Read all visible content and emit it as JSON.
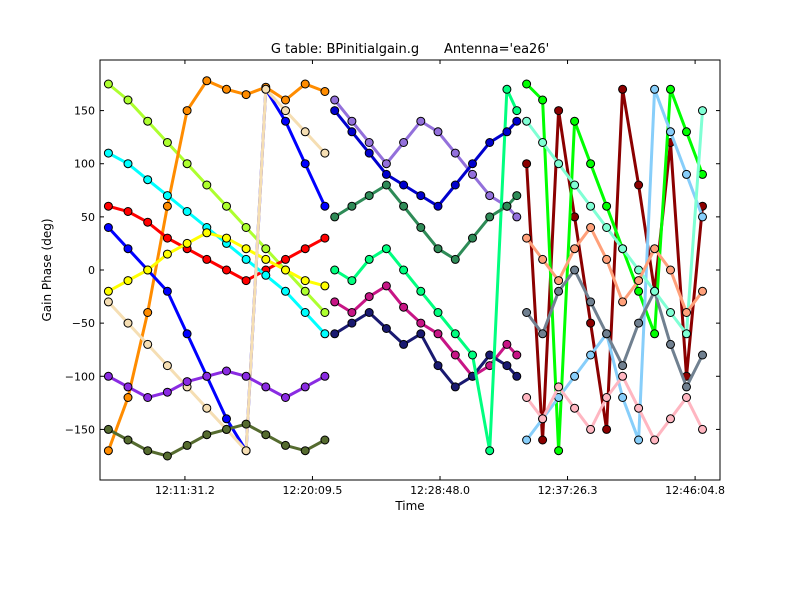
{
  "chart_data": {
    "type": "scatter",
    "title": "G table: BPinitialgain.g      Antenna='ea26'",
    "xlabel": "Time",
    "ylabel": "Gain Phase (deg)",
    "xlim": [
      "12:05:46",
      "12:47:46"
    ],
    "ylim": [
      -197.6,
      197.6
    ],
    "xticks": [
      "12:11:31.2",
      "12:20:09.5",
      "12:28:48.0",
      "12:37:26.3",
      "12:46:04.8"
    ],
    "yticks": [
      -150,
      -100,
      -50,
      0,
      50,
      100,
      150
    ],
    "grid": false,
    "marker": "circle",
    "x": [
      "12:06:20",
      "12:07:40",
      "12:09:00",
      "12:10:20",
      "12:11:40",
      "12:13:00",
      "12:14:20",
      "12:15:40",
      "12:17:00",
      "12:18:20",
      "12:19:40",
      "12:21:00",
      "12:21:40",
      "12:22:50",
      "12:24:00",
      "12:25:10",
      "12:26:20",
      "12:27:30",
      "12:28:40",
      "12:29:50",
      "12:31:00",
      "12:32:10",
      "12:33:20",
      "12:34:00",
      "12:34:40",
      "12:35:45",
      "12:36:50",
      "12:37:55",
      "12:39:00",
      "12:40:05",
      "12:41:10",
      "12:42:15",
      "12:43:20",
      "12:44:25",
      "12:45:30",
      "12:46:35"
    ],
    "series": [
      {
        "color": "#ADFF2F",
        "values": [
          175,
          160,
          140,
          120,
          100,
          80,
          60,
          40,
          20,
          0,
          -20,
          -40,
          null,
          null,
          null,
          null,
          null,
          null,
          null,
          null,
          null,
          null,
          null,
          null,
          null,
          null,
          null,
          null,
          null,
          null,
          null,
          null,
          null,
          null,
          null,
          null
        ]
      },
      {
        "color": "#FF8C00",
        "values": [
          -170,
          -120,
          -40,
          60,
          150,
          178,
          170,
          165,
          172,
          160,
          175,
          168,
          null,
          null,
          null,
          null,
          null,
          null,
          null,
          null,
          null,
          null,
          null,
          null,
          null,
          null,
          null,
          null,
          null,
          null,
          null,
          null,
          null,
          null,
          null,
          null
        ]
      },
      {
        "color": "#0000FF",
        "values": [
          40,
          20,
          0,
          -20,
          -60,
          -100,
          -140,
          -170,
          170,
          140,
          100,
          60,
          null,
          null,
          null,
          null,
          null,
          null,
          null,
          null,
          null,
          null,
          null,
          null,
          null,
          null,
          null,
          null,
          null,
          null,
          null,
          null,
          null,
          null,
          null,
          null
        ]
      },
      {
        "color": "#FF0000",
        "values": [
          60,
          55,
          45,
          30,
          20,
          10,
          0,
          -10,
          0,
          10,
          20,
          30,
          null,
          null,
          null,
          null,
          null,
          null,
          null,
          null,
          null,
          null,
          null,
          null,
          null,
          null,
          null,
          null,
          null,
          null,
          null,
          null,
          null,
          null,
          null,
          null
        ]
      },
      {
        "color": "#00FFFF",
        "values": [
          110,
          100,
          85,
          70,
          55,
          40,
          25,
          10,
          -5,
          -20,
          -40,
          -60,
          null,
          null,
          null,
          null,
          null,
          null,
          null,
          null,
          null,
          null,
          null,
          null,
          null,
          null,
          null,
          null,
          null,
          null,
          null,
          null,
          null,
          null,
          null,
          null
        ]
      },
      {
        "color": "#FFFF00",
        "values": [
          -20,
          -10,
          0,
          15,
          25,
          35,
          30,
          20,
          10,
          0,
          -10,
          -15,
          null,
          null,
          null,
          null,
          null,
          null,
          null,
          null,
          null,
          null,
          null,
          null,
          null,
          null,
          null,
          null,
          null,
          null,
          null,
          null,
          null,
          null,
          null,
          null
        ]
      },
      {
        "color": "#F5DEB3",
        "values": [
          -30,
          -50,
          -70,
          -90,
          -110,
          -130,
          -150,
          -170,
          170,
          150,
          130,
          110,
          null,
          null,
          null,
          null,
          null,
          null,
          null,
          null,
          null,
          null,
          null,
          null,
          null,
          null,
          null,
          null,
          null,
          null,
          null,
          null,
          null,
          null,
          null,
          null
        ]
      },
      {
        "color": "#8A2BE2",
        "values": [
          -100,
          -110,
          -120,
          -115,
          -105,
          -100,
          -95,
          -100,
          -110,
          -120,
          -110,
          -100,
          null,
          null,
          null,
          null,
          null,
          null,
          null,
          null,
          null,
          null,
          null,
          null,
          null,
          null,
          null,
          null,
          null,
          null,
          null,
          null,
          null,
          null,
          null,
          null
        ]
      },
      {
        "color": "#556B2F",
        "values": [
          -150,
          -160,
          -170,
          -175,
          -165,
          -155,
          -150,
          -145,
          -155,
          -165,
          -170,
          -160,
          null,
          null,
          null,
          null,
          null,
          null,
          null,
          null,
          null,
          null,
          null,
          null,
          null,
          null,
          null,
          null,
          null,
          null,
          null,
          null,
          null,
          null,
          null,
          null
        ]
      },
      {
        "color": "#9370DB",
        "values": [
          null,
          null,
          null,
          null,
          null,
          null,
          null,
          null,
          null,
          null,
          null,
          null,
          160,
          140,
          120,
          100,
          120,
          140,
          130,
          110,
          90,
          70,
          60,
          50,
          null,
          null,
          null,
          null,
          null,
          null,
          null,
          null,
          null,
          null,
          null,
          null
        ]
      },
      {
        "color": "#C71585",
        "values": [
          null,
          null,
          null,
          null,
          null,
          null,
          null,
          null,
          null,
          null,
          null,
          null,
          -30,
          -40,
          -25,
          -15,
          -35,
          -50,
          -60,
          -80,
          -100,
          -90,
          -70,
          -80,
          null,
          null,
          null,
          null,
          null,
          null,
          null,
          null,
          null,
          null,
          null,
          null
        ]
      },
      {
        "color": "#191970",
        "values": [
          null,
          null,
          null,
          null,
          null,
          null,
          null,
          null,
          null,
          null,
          null,
          null,
          -60,
          -50,
          -40,
          -55,
          -70,
          -60,
          -90,
          -110,
          -100,
          -80,
          -90,
          -100,
          null,
          null,
          null,
          null,
          null,
          null,
          null,
          null,
          null,
          null,
          null,
          null
        ]
      },
      {
        "color": "#00FF7F",
        "values": [
          null,
          null,
          null,
          null,
          null,
          null,
          null,
          null,
          null,
          null,
          null,
          null,
          0,
          -10,
          10,
          20,
          0,
          -20,
          -40,
          -60,
          -80,
          -170,
          170,
          150,
          null,
          null,
          null,
          null,
          null,
          null,
          null,
          null,
          null,
          null,
          null,
          null
        ]
      },
      {
        "color": "#2E8B57",
        "values": [
          null,
          null,
          null,
          null,
          null,
          null,
          null,
          null,
          null,
          null,
          null,
          null,
          50,
          60,
          70,
          80,
          60,
          40,
          20,
          10,
          30,
          50,
          60,
          70,
          null,
          null,
          null,
          null,
          null,
          null,
          null,
          null,
          null,
          null,
          null,
          null
        ]
      },
      {
        "color": "#0000CD",
        "values": [
          null,
          null,
          null,
          null,
          null,
          null,
          null,
          null,
          null,
          null,
          null,
          null,
          150,
          130,
          110,
          90,
          80,
          70,
          60,
          80,
          100,
          120,
          130,
          140,
          null,
          null,
          null,
          null,
          null,
          null,
          null,
          null,
          null,
          null,
          null,
          null
        ]
      },
      {
        "color": "#8B0000",
        "values": [
          null,
          null,
          null,
          null,
          null,
          null,
          null,
          null,
          null,
          null,
          null,
          null,
          null,
          null,
          null,
          null,
          null,
          null,
          null,
          null,
          null,
          null,
          null,
          null,
          100,
          -160,
          150,
          50,
          -50,
          -150,
          170,
          80,
          -20,
          120,
          -100,
          60
        ]
      },
      {
        "color": "#00FF00",
        "values": [
          null,
          null,
          null,
          null,
          null,
          null,
          null,
          null,
          null,
          null,
          null,
          null,
          null,
          null,
          null,
          null,
          null,
          null,
          null,
          null,
          null,
          null,
          null,
          null,
          175,
          160,
          -170,
          140,
          100,
          60,
          20,
          -20,
          -60,
          170,
          130,
          90
        ]
      },
      {
        "color": "#87CEFA",
        "values": [
          null,
          null,
          null,
          null,
          null,
          null,
          null,
          null,
          null,
          null,
          null,
          null,
          null,
          null,
          null,
          null,
          null,
          null,
          null,
          null,
          null,
          null,
          null,
          null,
          -160,
          -140,
          -120,
          -100,
          -80,
          -60,
          -120,
          -160,
          170,
          130,
          90,
          50
        ]
      },
      {
        "color": "#708090",
        "values": [
          null,
          null,
          null,
          null,
          null,
          null,
          null,
          null,
          null,
          null,
          null,
          null,
          null,
          null,
          null,
          null,
          null,
          null,
          null,
          null,
          null,
          null,
          null,
          null,
          -40,
          -60,
          -20,
          0,
          -30,
          -60,
          -90,
          -50,
          -20,
          -70,
          -110,
          -80
        ]
      },
      {
        "color": "#7FFFD4",
        "values": [
          null,
          null,
          null,
          null,
          null,
          null,
          null,
          null,
          null,
          null,
          null,
          null,
          null,
          null,
          null,
          null,
          null,
          null,
          null,
          null,
          null,
          null,
          null,
          null,
          140,
          120,
          100,
          80,
          60,
          40,
          20,
          0,
          -20,
          -40,
          -60,
          150
        ]
      },
      {
        "color": "#FFA07A",
        "values": [
          null,
          null,
          null,
          null,
          null,
          null,
          null,
          null,
          null,
          null,
          null,
          null,
          null,
          null,
          null,
          null,
          null,
          null,
          null,
          null,
          null,
          null,
          null,
          null,
          30,
          10,
          -10,
          20,
          40,
          10,
          -30,
          -10,
          20,
          0,
          -40,
          -20
        ]
      },
      {
        "color": "#FFB6C1",
        "values": [
          null,
          null,
          null,
          null,
          null,
          null,
          null,
          null,
          null,
          null,
          null,
          null,
          null,
          null,
          null,
          null,
          null,
          null,
          null,
          null,
          null,
          null,
          null,
          null,
          -120,
          -140,
          -110,
          -130,
          -150,
          -120,
          -100,
          -130,
          -160,
          -140,
          -120,
          -150
        ]
      }
    ]
  }
}
